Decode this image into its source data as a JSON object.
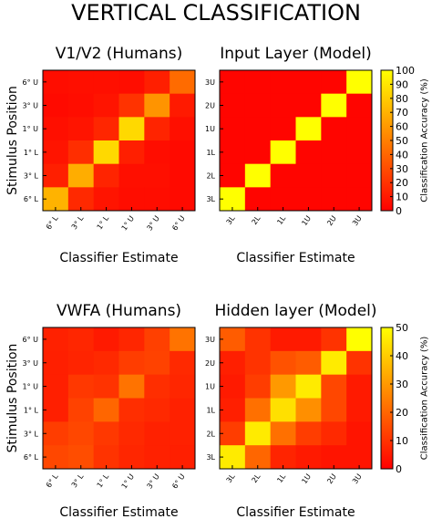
{
  "figure_title": "VERTICAL CLASSIFICATION",
  "chart_data": [
    {
      "type": "heatmap",
      "title": "V1/V2 (Humans)",
      "xlabel": "Classifier Estimate",
      "ylabel": "Stimulus Position",
      "x_ticklabels": [
        "6° L",
        "3° L",
        "1° L",
        "1° U",
        "3° U",
        "6° U"
      ],
      "y_ticklabels": [
        "6° U",
        "3° U",
        "1° U",
        "1° L",
        "3° L",
        "6° L"
      ],
      "values": [
        [
          5,
          6,
          6,
          5,
          12,
          42
        ],
        [
          4,
          5,
          8,
          20,
          58,
          10
        ],
        [
          6,
          8,
          15,
          85,
          14,
          6
        ],
        [
          8,
          18,
          85,
          12,
          5,
          4
        ],
        [
          12,
          68,
          14,
          6,
          6,
          4
        ],
        [
          70,
          16,
          8,
          5,
          5,
          4
        ]
      ],
      "colorbar": null
    },
    {
      "type": "heatmap",
      "title": "Input Layer (Model)",
      "xlabel": "Classifier Estimate",
      "ylabel": "",
      "x_ticklabels": [
        "3L",
        "2L",
        "1L",
        "1U",
        "2U",
        "3U"
      ],
      "y_ticklabels": [
        "3U",
        "2U",
        "1U",
        "1L",
        "2L",
        "3L"
      ],
      "values": [
        [
          2,
          2,
          2,
          2,
          2,
          100
        ],
        [
          2,
          2,
          2,
          2,
          100,
          2
        ],
        [
          2,
          2,
          2,
          100,
          2,
          2
        ],
        [
          2,
          2,
          100,
          2,
          2,
          2
        ],
        [
          2,
          100,
          2,
          2,
          2,
          2
        ],
        [
          100,
          2,
          2,
          2,
          2,
          2
        ]
      ],
      "colorbar": {
        "label": "Classification Accuracy (%)",
        "ticks": [
          "0",
          "10",
          "20",
          "30",
          "40",
          "50",
          "60",
          "70",
          "80",
          "90",
          "100"
        ],
        "range": [
          0,
          100
        ]
      }
    },
    {
      "type": "heatmap",
      "title": "VWFA (Humans)",
      "xlabel": "Classifier Estimate",
      "ylabel": "Stimulus Position",
      "x_ticklabels": [
        "6° L",
        "3° L",
        "1° L",
        "1° U",
        "3° U",
        "6° U"
      ],
      "y_ticklabels": [
        "6° U",
        "3° U",
        "1° U",
        "1° L",
        "3° L",
        "6° L"
      ],
      "values": [
        [
          13,
          15,
          10,
          15,
          25,
          45
        ],
        [
          12,
          14,
          16,
          24,
          26,
          16
        ],
        [
          12,
          22,
          20,
          45,
          18,
          15
        ],
        [
          12,
          26,
          40,
          18,
          16,
          13
        ],
        [
          24,
          28,
          22,
          16,
          13,
          13
        ],
        [
          28,
          30,
          20,
          15,
          13,
          12
        ]
      ],
      "colorbar": null
    },
    {
      "type": "heatmap",
      "title": "Hidden layer (Model)",
      "xlabel": "Classifier Estimate",
      "ylabel": "",
      "x_ticklabels": [
        "3L",
        "2L",
        "1L",
        "1U",
        "2U",
        "3U"
      ],
      "y_ticklabels": [
        "3U",
        "2U",
        "1U",
        "1L",
        "2L",
        "3L"
      ],
      "values": [
        [
          18,
          10,
          5,
          5,
          10,
          50
        ],
        [
          6,
          10,
          16,
          18,
          46,
          10
        ],
        [
          5,
          12,
          30,
          46,
          14,
          5
        ],
        [
          6,
          22,
          44,
          28,
          14,
          5
        ],
        [
          12,
          46,
          22,
          12,
          8,
          4
        ],
        [
          46,
          20,
          7,
          5,
          4,
          4
        ]
      ],
      "colorbar": {
        "label": "Classification Accuracy (%)",
        "ticks": [
          "0",
          "10",
          "20",
          "30",
          "40",
          "50"
        ],
        "range": [
          0,
          50
        ]
      }
    }
  ]
}
